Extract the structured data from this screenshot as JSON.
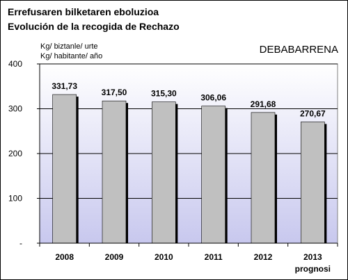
{
  "titles": {
    "line1": "Errefusaren bilketaren eboluzioa",
    "line2": "Evolución de la recogida de Rechazo"
  },
  "units": {
    "line1": "Kg/ biztanle/ urte",
    "line2": "Kg/ habitante/ año"
  },
  "region": "DEBABARRENA",
  "chart_data": {
    "type": "bar",
    "categories": [
      "2008",
      "2009",
      "2010",
      "2011",
      "2012",
      "2013"
    ],
    "category_sublabels": [
      "",
      "",
      "",
      "",
      "",
      "prognosi"
    ],
    "values": [
      331.73,
      317.5,
      315.3,
      306.06,
      291.68,
      270.67
    ],
    "value_labels": [
      "331,73",
      "317,50",
      "315,30",
      "306,06",
      "291,68",
      "270,67"
    ],
    "ylim": [
      0,
      400
    ],
    "yticks": [
      0,
      100,
      200,
      300,
      400
    ],
    "ytick_labels": [
      "-",
      "100",
      "200",
      "300",
      "400"
    ],
    "grid": true,
    "colors": {
      "bar": "#c0c0c0",
      "bar_shadow": "#000000",
      "background_top": "#ffffff",
      "background_bottom": "#c8c8ee"
    }
  }
}
